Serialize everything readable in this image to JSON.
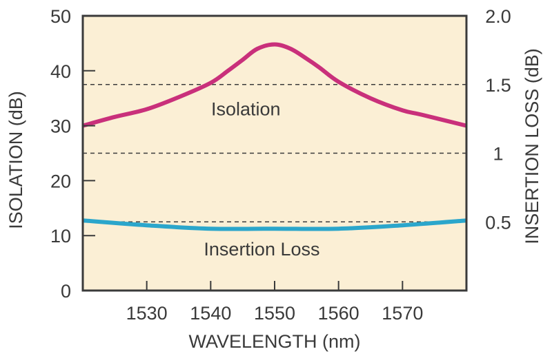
{
  "chart_data": {
    "type": "line",
    "title": "",
    "xlabel": "WAVELENGTH (nm)",
    "ylabel": "ISOLATION (dB)",
    "y2label": "INSERTION LOSS (dB)",
    "xlim": [
      1520,
      1580
    ],
    "ylim": [
      0,
      50
    ],
    "y2lim": [
      0,
      2.0
    ],
    "x_ticks": [
      1530,
      1540,
      1550,
      1560,
      1570
    ],
    "x_tick_labels": [
      "1530",
      "1540",
      "1550",
      "1560",
      "1570"
    ],
    "y_ticks": [
      0,
      10,
      20,
      30,
      40,
      50
    ],
    "y_tick_labels": [
      "0",
      "10",
      "20",
      "30",
      "40",
      "50"
    ],
    "y2_ticks": [
      0.5,
      1.0,
      1.5,
      2.0
    ],
    "y2_tick_labels": [
      "0.5",
      "1",
      "1.5",
      "2.0"
    ],
    "grid": "dashed horizontal lines at right-axis 0.5, 1, 1.5",
    "background_color": "#FBEFD5",
    "series": [
      {
        "name": "Isolation",
        "axis": "left",
        "color": "#C9307B",
        "x": [
          1520,
          1525,
          1530,
          1535,
          1540,
          1542.7,
          1545,
          1547.3,
          1550,
          1552.5,
          1555,
          1557,
          1560,
          1565,
          1570,
          1573,
          1580
        ],
        "values": [
          30.0,
          31.6,
          33.0,
          35.2,
          37.8,
          40.0,
          42.0,
          44.0,
          44.8,
          44.0,
          42.2,
          40.6,
          38.0,
          35.0,
          32.8,
          32.0,
          30.0
        ]
      },
      {
        "name": "Insertion Loss",
        "axis": "right",
        "color": "#2BA6CB",
        "x": [
          1520,
          1530,
          1540,
          1550,
          1560,
          1570,
          1580
        ],
        "values": [
          0.51,
          0.475,
          0.45,
          0.45,
          0.45,
          0.475,
          0.51
        ]
      }
    ],
    "annotations": [
      {
        "text": "Isolation",
        "x": 1545.5,
        "y": 33
      },
      {
        "text": "Insertion Loss",
        "x": 1548,
        "y": 7.5
      }
    ]
  }
}
